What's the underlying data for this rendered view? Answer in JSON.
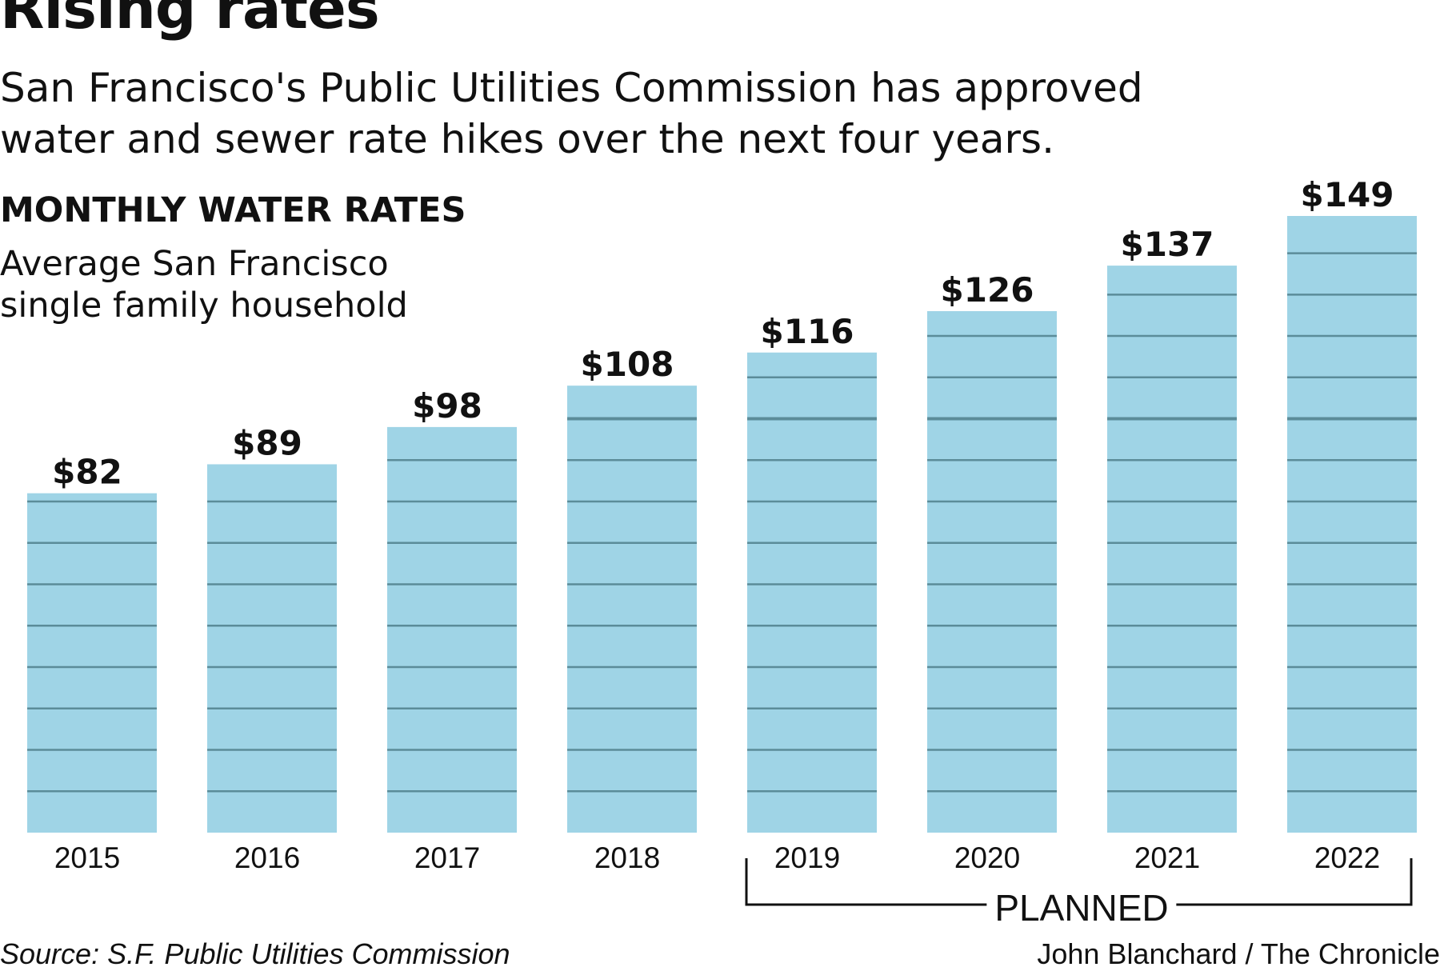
{
  "title": "Rising rates",
  "subtitle_lines": [
    "San Francisco's Public Utilities Commission has approved",
    "water and sewer rate hikes over the next four years."
  ],
  "section_title": "MONTHLY WATER RATES",
  "description_lines": [
    "Average San Francisco",
    "single family household"
  ],
  "planned_label": "PLANNED",
  "source": "Source: S.F. Public Utilities Commission",
  "credit": "John Blanchard / The Chronicle",
  "colors": {
    "bar": "#9fd4e6",
    "bar_line": "#5b8c99",
    "text": "#111111"
  },
  "chart_data": {
    "type": "bar",
    "title": "MONTHLY WATER RATES",
    "categories": [
      "2015",
      "2016",
      "2017",
      "2018",
      "2019",
      "2020",
      "2021",
      "2022"
    ],
    "values": [
      82,
      89,
      98,
      108,
      116,
      126,
      137,
      149
    ],
    "value_labels": [
      "$82",
      "$89",
      "$98",
      "$108",
      "$116",
      "$126",
      "$137",
      "$149"
    ],
    "planned_categories": [
      "2019",
      "2020",
      "2021",
      "2022"
    ],
    "ylim": [
      0,
      149
    ],
    "grid": false,
    "xlabel": "",
    "ylabel": ""
  }
}
